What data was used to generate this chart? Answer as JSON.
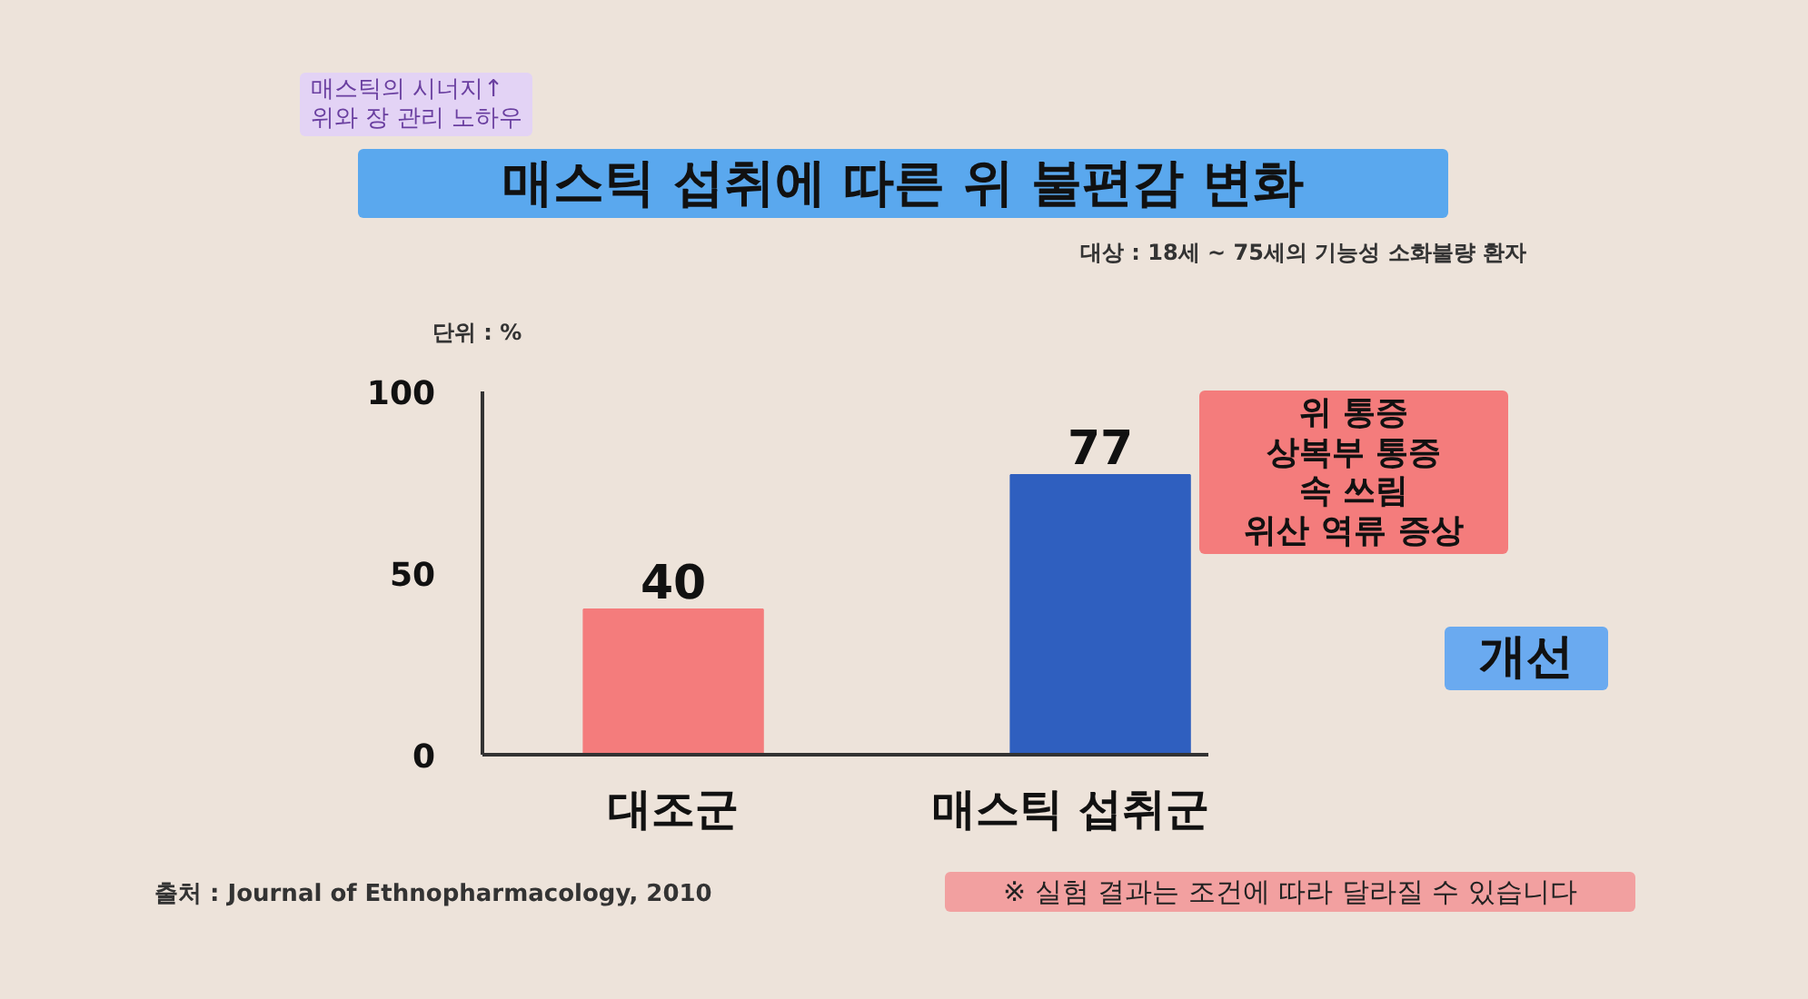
{
  "chart_data": {
    "type": "bar",
    "title": "매스틱 섭취에 따른 위 불편감 변화",
    "subtitle": "대상 : 18세 ~ 75세의 기능성 소화불량 환자",
    "ylabel": "단위 : %",
    "categories": [
      "대조군",
      "매스틱 섭취군"
    ],
    "values": [
      40,
      77
    ],
    "colors": [
      "#f47c7c",
      "#2f5fbf"
    ],
    "ylim": [
      0,
      100
    ],
    "yticks": [
      0,
      50,
      100
    ],
    "grid": false,
    "data_labels": true,
    "annotations": [
      "매스틱의 시너지↑\n위와 장 관리 노하우",
      "위 통증\n상복부 통증\n속 쓰림\n위산 역류 증상",
      "개선",
      "출처 : Journal of Ethnopharmacology, 2010",
      "※ 실험 결과는 조건에 따라 달라질 수 있습니다"
    ]
  }
}
